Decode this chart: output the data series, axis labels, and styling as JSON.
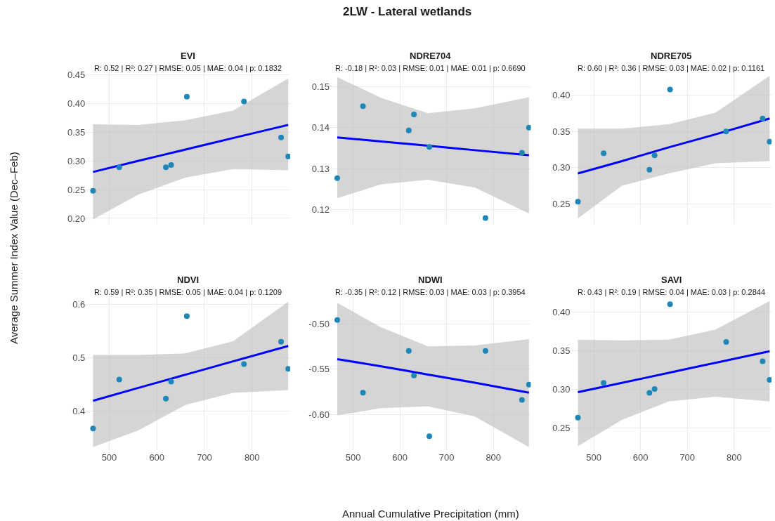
{
  "chart_data": [
    {
      "type": "scatter",
      "title": "EVI",
      "subtitle": "R: 0.52 | R²: 0.27 | RMSE: 0.05 | MAE: 0.04 | p: 0.1832",
      "ylabel": "Average Summer Index Value (Dec–Feb)",
      "annotations": [
        "2LW - Lateral wetlands"
      ],
      "xlim": [
        451,
        880
      ],
      "xticks": [
        500,
        600,
        700,
        800
      ],
      "ylim": [
        0.19,
        0.455
      ],
      "yticks": [
        {
          "value": 0.2,
          "label": "0.20"
        },
        {
          "value": 0.25,
          "label": "0.25"
        },
        {
          "value": 0.3,
          "label": "0.30"
        },
        {
          "value": 0.35,
          "label": "0.35"
        },
        {
          "value": 0.4,
          "label": "0.40"
        },
        {
          "value": 0.45,
          "label": "0.45"
        }
      ],
      "tick_labels": "y",
      "grid": true,
      "series": [
        {
          "type": "scatter",
          "marker": "circle",
          "color": "#1f87b8",
          "x": [
            466,
            521,
            619,
            630,
            663,
            783,
            861,
            876
          ],
          "values": [
            0.248,
            0.289,
            0.289,
            0.293,
            0.412,
            0.404,
            0.341,
            0.308
          ]
        },
        {
          "type": "line",
          "color": "#0000ff",
          "x": [
            466,
            560,
            660,
            760,
            876
          ],
          "values": [
            0.281,
            0.3,
            0.32,
            0.34,
            0.363
          ],
          "lower": [
            0.198,
            0.241,
            0.271,
            0.286,
            0.284
          ],
          "upper": [
            0.364,
            0.363,
            0.371,
            0.388,
            0.444
          ]
        }
      ]
    },
    {
      "type": "scatter",
      "title": "NDRE704",
      "subtitle": "R: -0.18 | R²: 0.03 | RMSE: 0.01 | MAE: 0.01 | p: 0.6690",
      "xlim": [
        451,
        880
      ],
      "xticks": [
        500,
        600,
        700,
        800
      ],
      "ylim": [
        0.1165,
        0.1535
      ],
      "yticks": [
        {
          "value": 0.12,
          "label": "0.12"
        },
        {
          "value": 0.13,
          "label": "0.13"
        },
        {
          "value": 0.14,
          "label": "0.14"
        },
        {
          "value": 0.15,
          "label": "0.15"
        }
      ],
      "tick_labels": "y",
      "grid": true,
      "series": [
        {
          "type": "scatter",
          "marker": "circle",
          "color": "#1f87b8",
          "x": [
            466,
            521,
            619,
            630,
            663,
            783,
            861,
            876
          ],
          "values": [
            0.1277,
            0.1452,
            0.1393,
            0.1432,
            0.1353,
            0.118,
            0.1339,
            0.14
          ]
        },
        {
          "type": "line",
          "color": "#0000ff",
          "x": [
            466,
            560,
            660,
            760,
            876
          ],
          "values": [
            0.1376,
            0.1366,
            0.1356,
            0.1345,
            0.1333
          ],
          "lower": [
            0.1228,
            0.1262,
            0.1273,
            0.1254,
            0.1191
          ],
          "upper": [
            0.1523,
            0.1472,
            0.1435,
            0.1447,
            0.1474
          ]
        }
      ]
    },
    {
      "type": "scatter",
      "title": "NDRE705",
      "subtitle": "R: 0.60 | R²: 0.36 | RMSE: 0.03 | MAE: 0.02 | p: 0.1161",
      "xlim": [
        451,
        880
      ],
      "xticks": [
        500,
        600,
        700,
        800
      ],
      "ylim": [
        0.222,
        0.432
      ],
      "yticks": [
        {
          "value": 0.25,
          "label": "0.25"
        },
        {
          "value": 0.3,
          "label": "0.30"
        },
        {
          "value": 0.35,
          "label": "0.35"
        },
        {
          "value": 0.4,
          "label": "0.40"
        }
      ],
      "tick_labels": "y",
      "grid": true,
      "series": [
        {
          "type": "scatter",
          "marker": "circle",
          "color": "#1f87b8",
          "x": [
            466,
            521,
            619,
            630,
            663,
            783,
            861,
            876
          ],
          "values": [
            0.253,
            0.32,
            0.297,
            0.317,
            0.408,
            0.35,
            0.368,
            0.336
          ]
        },
        {
          "type": "line",
          "color": "#0000ff",
          "x": [
            466,
            560,
            660,
            760,
            876
          ],
          "values": [
            0.292,
            0.309,
            0.328,
            0.346,
            0.368
          ],
          "lower": [
            0.23,
            0.275,
            0.292,
            0.306,
            0.309
          ],
          "upper": [
            0.354,
            0.354,
            0.36,
            0.376,
            0.427
          ]
        }
      ]
    },
    {
      "type": "scatter",
      "title": "NDVI",
      "subtitle": "R: 0.59 | R²: 0.35 | RMSE: 0.05 | MAE: 0.04 | p: 0.1209",
      "xlim": [
        451,
        880
      ],
      "xticks": [
        500,
        600,
        700,
        800
      ],
      "ylim": [
        0.325,
        0.615
      ],
      "yticks": [
        {
          "value": 0.4,
          "label": "0.4"
        },
        {
          "value": 0.5,
          "label": "0.5"
        },
        {
          "value": 0.6,
          "label": "0.6"
        }
      ],
      "grid": true,
      "series": [
        {
          "type": "scatter",
          "marker": "circle",
          "color": "#1f87b8",
          "x": [
            466,
            521,
            619,
            630,
            663,
            783,
            861,
            876
          ],
          "values": [
            0.367,
            0.459,
            0.423,
            0.455,
            0.578,
            0.488,
            0.53,
            0.479
          ]
        },
        {
          "type": "line",
          "color": "#0000ff",
          "x": [
            466,
            560,
            660,
            760,
            876
          ],
          "values": [
            0.419,
            0.443,
            0.468,
            0.493,
            0.522
          ],
          "lower": [
            0.332,
            0.363,
            0.411,
            0.434,
            0.439
          ],
          "upper": [
            0.505,
            0.505,
            0.508,
            0.531,
            0.605
          ]
        }
      ]
    },
    {
      "type": "scatter",
      "title": "NDWI",
      "subtitle": "R: -0.35 | R²: 0.12 | RMSE: 0.03 | MAE: 0.03 | p: 0.3954",
      "xlabel": "Annual Cumulative Precipitation (mm)",
      "xlim": [
        451,
        880
      ],
      "xticks": [
        500,
        600,
        700,
        800
      ],
      "ylim": [
        -0.64,
        -0.47
      ],
      "yticks": [
        {
          "value": -0.6,
          "label": "-0.60"
        },
        {
          "value": -0.55,
          "label": "-0.55"
        },
        {
          "value": -0.5,
          "label": "-0.50"
        }
      ],
      "grid": true,
      "series": [
        {
          "type": "scatter",
          "marker": "circle",
          "color": "#1f87b8",
          "x": [
            466,
            521,
            619,
            630,
            663,
            783,
            861,
            876
          ],
          "values": [
            -0.496,
            -0.576,
            -0.53,
            -0.557,
            -0.624,
            -0.53,
            -0.584,
            -0.567
          ]
        },
        {
          "type": "line",
          "color": "#0000ff",
          "x": [
            466,
            560,
            660,
            760,
            876
          ],
          "values": [
            -0.539,
            -0.547,
            -0.556,
            -0.565,
            -0.576
          ],
          "lower": [
            -0.601,
            -0.593,
            -0.591,
            -0.602,
            -0.636
          ],
          "upper": [
            -0.477,
            -0.504,
            -0.525,
            -0.524,
            -0.517
          ]
        }
      ]
    },
    {
      "type": "scatter",
      "title": "SAVI",
      "subtitle": "R: 0.43 | R²: 0.19 | RMSE: 0.04 | MAE: 0.03 | p: 0.2844",
      "xlim": [
        451,
        880
      ],
      "xticks": [
        500,
        600,
        700,
        800
      ],
      "ylim": [
        0.22,
        0.42
      ],
      "yticks": [
        {
          "value": 0.25,
          "label": "0.25"
        },
        {
          "value": 0.3,
          "label": "0.30"
        },
        {
          "value": 0.35,
          "label": "0.35"
        },
        {
          "value": 0.4,
          "label": "0.40"
        }
      ],
      "grid": true,
      "series": [
        {
          "type": "scatter",
          "marker": "circle",
          "color": "#1f87b8",
          "x": [
            466,
            521,
            619,
            630,
            663,
            783,
            861,
            876
          ],
          "values": [
            0.263,
            0.308,
            0.295,
            0.3,
            0.41,
            0.361,
            0.336,
            0.312
          ]
        },
        {
          "type": "line",
          "color": "#0000ff",
          "x": [
            466,
            560,
            660,
            760,
            876
          ],
          "values": [
            0.296,
            0.308,
            0.321,
            0.334,
            0.349
          ],
          "lower": [
            0.226,
            0.26,
            0.284,
            0.29,
            0.284
          ],
          "upper": [
            0.364,
            0.363,
            0.364,
            0.377,
            0.414
          ]
        }
      ]
    }
  ]
}
